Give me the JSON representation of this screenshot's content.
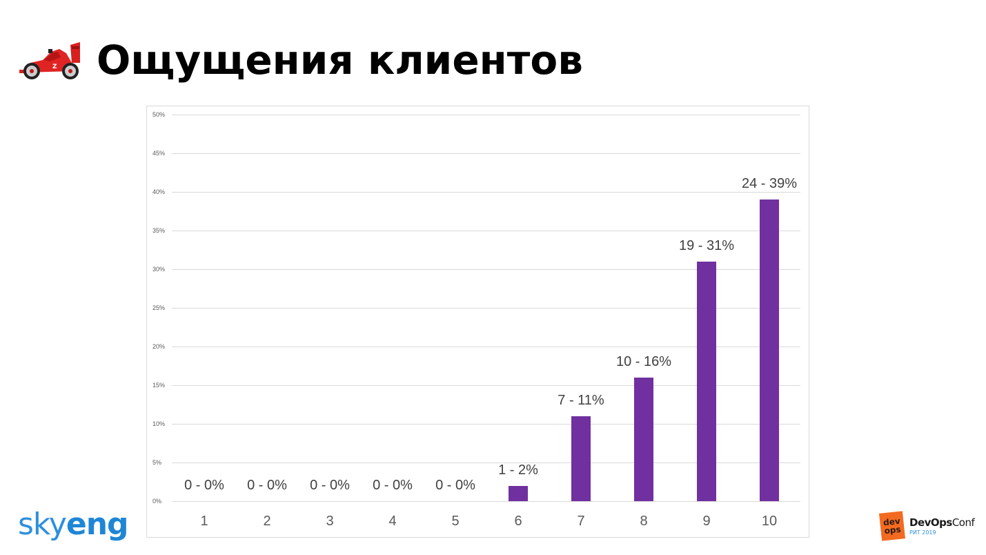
{
  "slide": {
    "title": "Ощущения клиентов",
    "title_icon": "race-car-icon"
  },
  "branding": {
    "left_logo_light": "sky",
    "left_logo_bold": "eng",
    "left_logo_color": "#2d8fdd",
    "right_badge_top": "dev",
    "right_badge_bottom": "ops",
    "right_name_bold": "DevOps",
    "right_name_light": "Conf",
    "right_sub": "РИТ 2019",
    "right_badge_color": "#f26b21"
  },
  "chart_data": {
    "type": "bar",
    "title": "",
    "xlabel": "",
    "ylabel": "",
    "categories": [
      "1",
      "2",
      "3",
      "4",
      "5",
      "6",
      "7",
      "8",
      "9",
      "10"
    ],
    "counts": [
      0,
      0,
      0,
      0,
      0,
      1,
      7,
      10,
      19,
      24
    ],
    "values": [
      0,
      0,
      0,
      0,
      0,
      2,
      11,
      16,
      31,
      39
    ],
    "value_unit": "%",
    "data_labels": [
      "0 - 0%",
      "0 - 0%",
      "0 - 0%",
      "0 - 0%",
      "0 - 0%",
      "1 - 2%",
      "7 - 11%",
      "10 - 16%",
      "19 - 31%",
      "24 - 39%"
    ],
    "ylim": [
      0,
      50
    ],
    "yticks": [
      "0%",
      "5%",
      "10%",
      "15%",
      "20%",
      "25%",
      "30%",
      "35%",
      "40%",
      "45%",
      "50%"
    ],
    "grid": true,
    "legend": "none",
    "bar_color": "#7030A0"
  }
}
